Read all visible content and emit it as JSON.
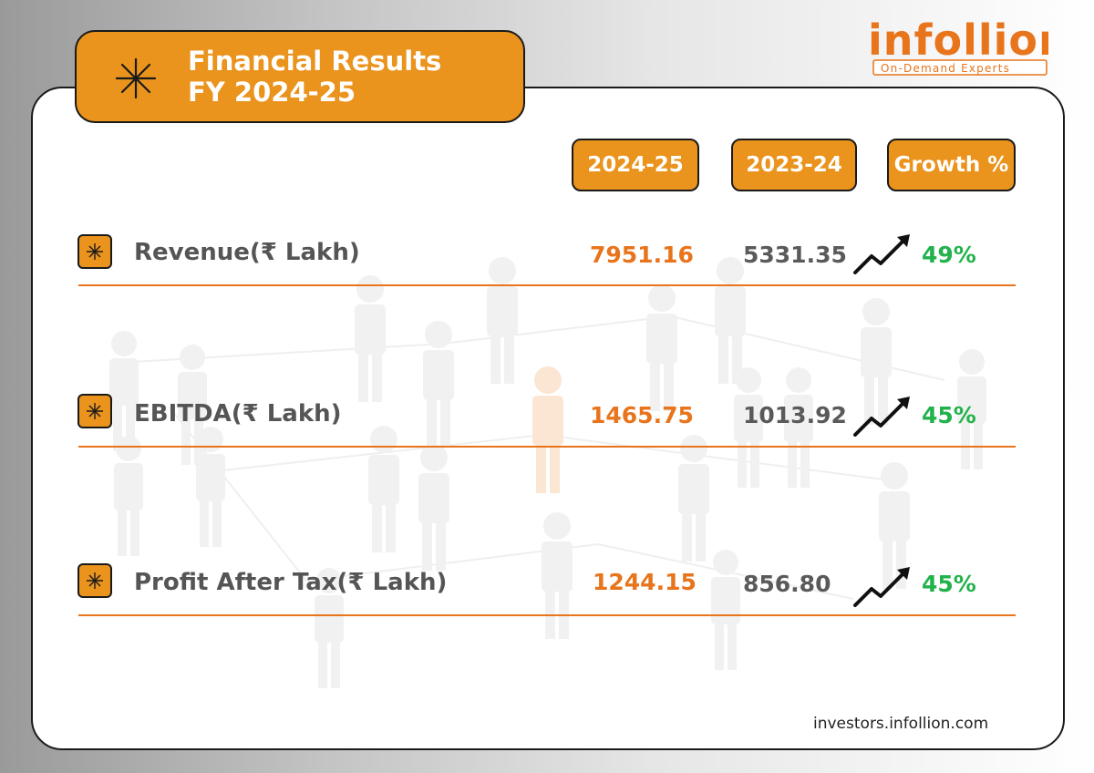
{
  "title": {
    "line1": "Financial Results",
    "line2": "FY 2024-25",
    "icon": "asterisk-icon"
  },
  "logo": {
    "wordmark": "infollion",
    "tagline": "On-Demand Experts"
  },
  "columns": {
    "current": "2024-25",
    "previous": "2023-24",
    "growth": "Growth %"
  },
  "rows": [
    {
      "label": "Revenue(₹ Lakh)",
      "current": "7951.16",
      "previous": "5331.35",
      "growth": "49%"
    },
    {
      "label": "EBITDA(₹ Lakh)",
      "current": "1465.75",
      "previous": "1013.92",
      "growth": "45%"
    },
    {
      "label": "Profit After Tax(₹ Lakh)",
      "current": "1244.15",
      "previous": "856.80",
      "growth": "45%"
    }
  ],
  "footer": {
    "url": "investors.infollion.com"
  },
  "colors": {
    "accent": "#ea931d",
    "current_value": "#e8741c",
    "growth": "#22b24c",
    "text": "#555555"
  }
}
